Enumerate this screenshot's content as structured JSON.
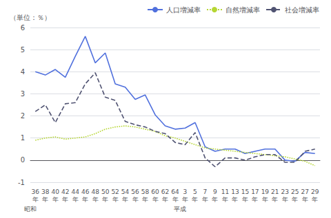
{
  "chart_data": {
    "type": "line",
    "y_label": "（単位：％）",
    "categories": [
      "36\n年",
      "38\n年",
      "40\n年",
      "42\n年",
      "44\n年",
      "46\n年",
      "48\n年",
      "50\n年",
      "52\n年",
      "54\n年",
      "56\n年",
      "58\n年",
      "60\n年",
      "62\n年",
      "64\n年",
      "3\n年",
      "5\n年",
      "7\n年",
      "9\n年",
      "11\n年",
      "13\n年",
      "15\n年",
      "17\n年",
      "19\n年",
      "21\n年",
      "23\n年",
      "25\n年",
      "27\n年",
      "29\n年"
    ],
    "series": [
      {
        "name": "人口増減率",
        "line_style": "solid",
        "values": [
          4.0,
          3.85,
          4.1,
          3.75,
          4.7,
          5.6,
          4.4,
          4.85,
          3.45,
          3.3,
          2.75,
          2.95,
          2.05,
          1.55,
          1.4,
          1.45,
          1.7,
          0.6,
          0.4,
          0.5,
          0.5,
          0.3,
          0.4,
          0.5,
          0.5,
          0.0,
          -0.05,
          0.35,
          0.3
        ]
      },
      {
        "name": "自然増減率",
        "line_style": "dotted",
        "values": [
          0.9,
          1.0,
          1.05,
          0.95,
          1.0,
          1.05,
          1.2,
          1.4,
          1.5,
          1.55,
          1.5,
          1.4,
          1.3,
          1.1,
          1.0,
          0.85,
          0.7,
          0.55,
          0.5,
          0.45,
          0.4,
          0.35,
          0.3,
          0.25,
          0.2,
          0.15,
          0.05,
          -0.05,
          -0.25
        ]
      },
      {
        "name": "社会増減率",
        "line_style": "dashed",
        "values": [
          2.2,
          2.5,
          1.7,
          2.55,
          2.6,
          3.45,
          3.95,
          2.85,
          2.7,
          1.75,
          1.6,
          1.5,
          1.3,
          1.2,
          0.8,
          0.7,
          1.25,
          0.1,
          -0.3,
          0.1,
          0.1,
          0.0,
          0.15,
          0.25,
          0.25,
          -0.1,
          -0.1,
          0.4,
          0.5
        ]
      }
    ],
    "annotations": [
      {
        "text": "昭和",
        "category": "36\n年"
      },
      {
        "text": "平成",
        "category": "3\n年"
      }
    ],
    "ylim": [
      -1,
      6
    ],
    "yticks": [
      -1,
      0,
      1,
      2,
      3,
      4,
      5,
      6
    ],
    "grid": true,
    "legend": "upper right"
  }
}
